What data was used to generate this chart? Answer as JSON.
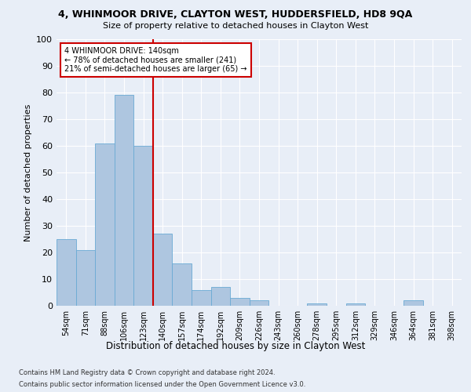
{
  "title1": "4, WHINMOOR DRIVE, CLAYTON WEST, HUDDERSFIELD, HD8 9QA",
  "title2": "Size of property relative to detached houses in Clayton West",
  "xlabel": "Distribution of detached houses by size in Clayton West",
  "ylabel": "Number of detached properties",
  "categories": [
    "54sqm",
    "71sqm",
    "88sqm",
    "106sqm",
    "123sqm",
    "140sqm",
    "157sqm",
    "174sqm",
    "192sqm",
    "209sqm",
    "226sqm",
    "243sqm",
    "260sqm",
    "278sqm",
    "295sqm",
    "312sqm",
    "329sqm",
    "346sqm",
    "364sqm",
    "381sqm",
    "398sqm"
  ],
  "values": [
    25,
    21,
    61,
    79,
    60,
    27,
    16,
    6,
    7,
    3,
    2,
    0,
    0,
    1,
    0,
    1,
    0,
    0,
    2,
    0,
    0
  ],
  "bar_color": "#aec6e0",
  "bar_edge_color": "#6aaad4",
  "vline_color": "#cc0000",
  "annotation_text": "4 WHINMOOR DRIVE: 140sqm\n← 78% of detached houses are smaller (241)\n21% of semi-detached houses are larger (65) →",
  "annotation_box_color": "white",
  "annotation_box_edge": "#cc0000",
  "ylim": [
    0,
    100
  ],
  "yticks": [
    0,
    10,
    20,
    30,
    40,
    50,
    60,
    70,
    80,
    90,
    100
  ],
  "footer1": "Contains HM Land Registry data © Crown copyright and database right 2024.",
  "footer2": "Contains public sector information licensed under the Open Government Licence v3.0.",
  "background_color": "#e8eef7",
  "plot_bg_color": "#e8eef7"
}
